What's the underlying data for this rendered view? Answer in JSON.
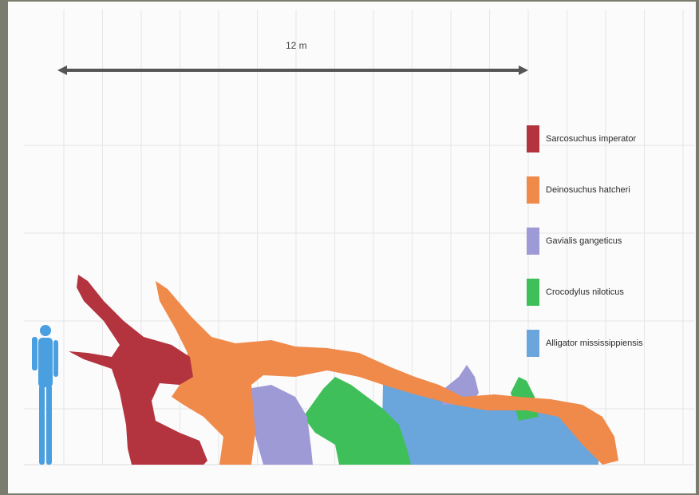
{
  "scale_bar": {
    "label": "12 m"
  },
  "legend": [
    {
      "label": "Sarcosuchus imperator",
      "color": "#b3343f"
    },
    {
      "label": "Deinosuchus hatcheri",
      "color": "#f08a4b"
    },
    {
      "label": "Gavialis gangeticus",
      "color": "#9e9ad6"
    },
    {
      "label": "Crocodylus niloticus",
      "color": "#3fbf5a"
    },
    {
      "label": "Alligator mississippiensis",
      "color": "#6aa5dc"
    }
  ],
  "human_color": "#4a9fe0",
  "grid_color": "#e6e6e6"
}
